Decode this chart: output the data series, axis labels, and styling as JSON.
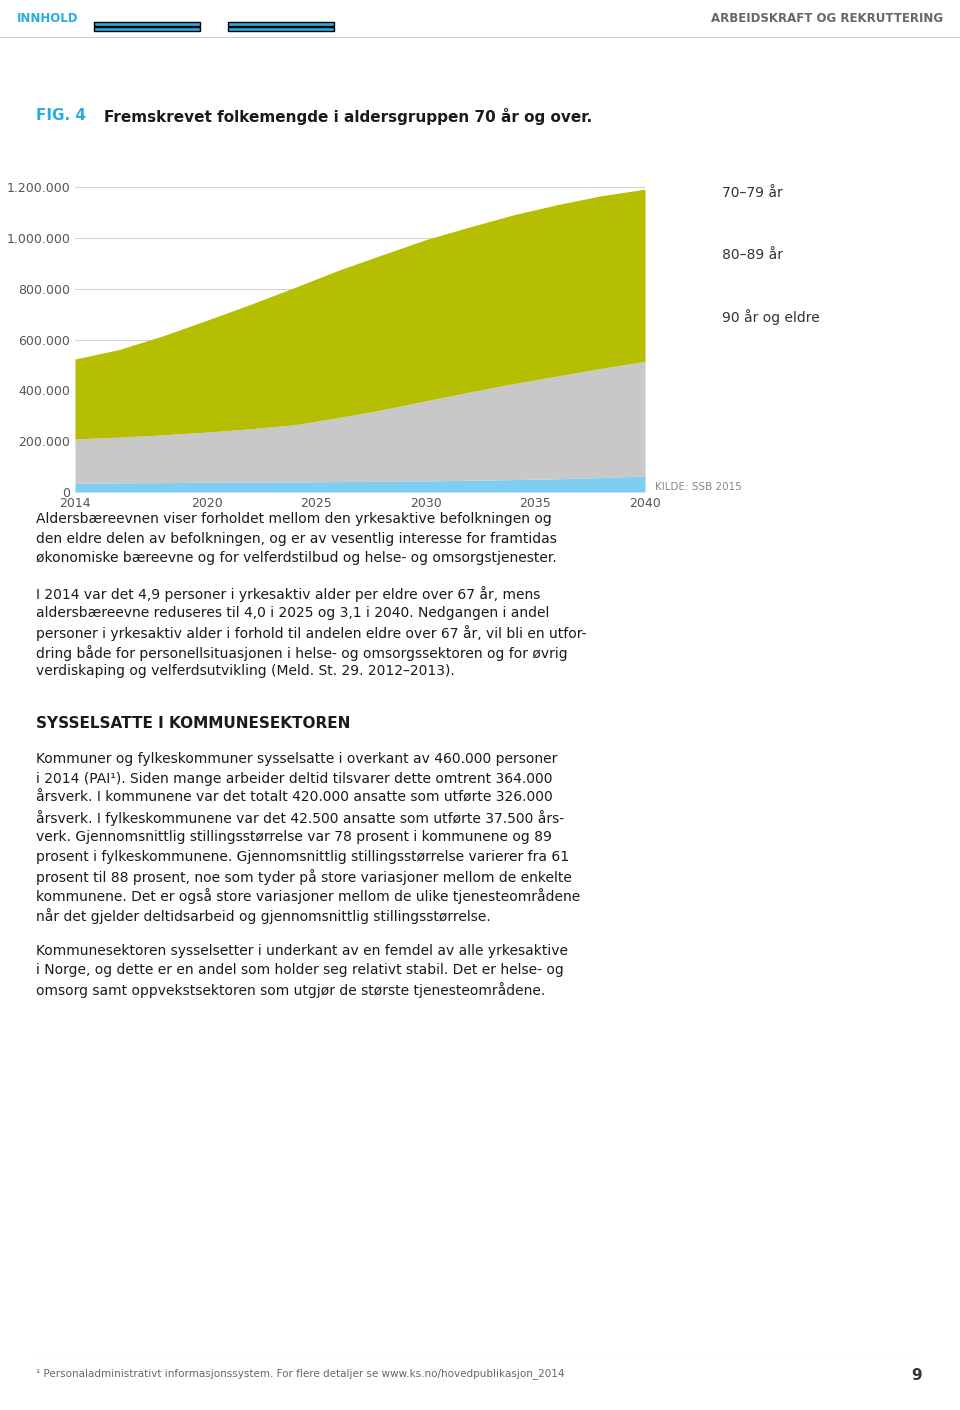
{
  "header_left": "INNHOLD",
  "header_right": "ARBEIDSKRAFT OG REKRUTTERING",
  "fig_label": "FIG. 4",
  "title": "Fremskrevet folkemengde i aldersgruppen 70 år og over.",
  "source": "KILDE: SSB 2015",
  "years": [
    2014,
    2016,
    2018,
    2020,
    2022,
    2024,
    2026,
    2028,
    2030,
    2032,
    2034,
    2036,
    2038,
    2040
  ],
  "age_70_79": [
    315000,
    345000,
    390000,
    440000,
    490000,
    540000,
    580000,
    610000,
    635000,
    650000,
    665000,
    675000,
    680000,
    678000
  ],
  "age_80_89": [
    175000,
    180000,
    188000,
    198000,
    210000,
    225000,
    252000,
    282000,
    315000,
    348000,
    378000,
    405000,
    430000,
    452000
  ],
  "age_90_plus": [
    34000,
    36000,
    37000,
    38000,
    39000,
    40000,
    41000,
    42000,
    44000,
    46000,
    49000,
    52000,
    57000,
    63000
  ],
  "color_70_79": "#b5be00",
  "color_80_89": "#c8c8c8",
  "color_90_plus": "#7ecef4",
  "legend_labels": [
    "70–79 år",
    "80–89 år",
    "90 år og eldre"
  ],
  "yticks": [
    0,
    200000,
    400000,
    600000,
    800000,
    1000000,
    1200000
  ],
  "ytick_labels": [
    "0",
    "200.000",
    "400.000",
    "600.000",
    "800.000",
    "1.000.000",
    "1.200.000"
  ],
  "xticks": [
    2014,
    2020,
    2025,
    2030,
    2035,
    2040
  ],
  "ylim": [
    0,
    1300000
  ],
  "bg": "#ffffff",
  "para1_lines": [
    "Aldersbæreevnen viser forholdet mellom den yrkesaktive befolkningen og",
    "den eldre delen av befolkningen, og er av vesentlig interesse for framtidas",
    "økonomiske bæreevne og for velferdstilbud og helse- og omsorgstjenester."
  ],
  "para2_lines": [
    "I 2014 var det 4,9 personer i yrkesaktiv alder per eldre over 67 år, mens",
    "aldersbæreevne reduseres til 4,0 i 2025 og 3,1 i 2040. Nedgangen i andel",
    "personer i yrkesaktiv alder i forhold til andelen eldre over 67 år, vil bli en utfor-",
    "dring både for personellsituasjonen i helse- og omsorgssektoren og for øvrig",
    "verdiskaping og velferdsutvikling (Meld. St. 29. 2012–2013)."
  ],
  "section_title": "SYSSELSATTE I KOMMUNESEKTOREN",
  "para3_lines": [
    "Kommuner og fylkeskommuner sysselsatte i overkant av 460.000 personer",
    "i 2014 (PAI¹). Siden mange arbeider deltid tilsvarer dette omtrent 364.000",
    "årsverk. I kommunene var det totalt 420.000 ansatte som utførte 326.000",
    "årsverk. I fylkeskommunene var det 42.500 ansatte som utførte 37.500 års-",
    "verk. Gjennomsnittlig stillingsstørrelse var 78 prosent i kommunene og 89",
    "prosent i fylkeskommunene. Gjennomsnittlig stillingsstørrelse varierer fra 61",
    "prosent til 88 prosent, noe som tyder på store variasjoner mellom de enkelte",
    "kommunene. Det er også store variasjoner mellom de ulike tjenesteområdene",
    "når det gjelder deltidsarbeid og gjennomsnittlig stillingsstørrelse."
  ],
  "para4_lines": [
    "Kommunesektoren sysselsetter i underkant av en femdel av alle yrkesaktive",
    "i Norge, og dette er en andel som holder seg relativt stabil. Det er helse- og",
    "omsorg samt oppvekstsektoren som utgjør de største tjenesteområdene."
  ],
  "footnote": "¹ Personaladministrativt informasjonssystem. For flere detaljer se www.ks.no/hovedpublikasjon_2014",
  "page_number": "9"
}
